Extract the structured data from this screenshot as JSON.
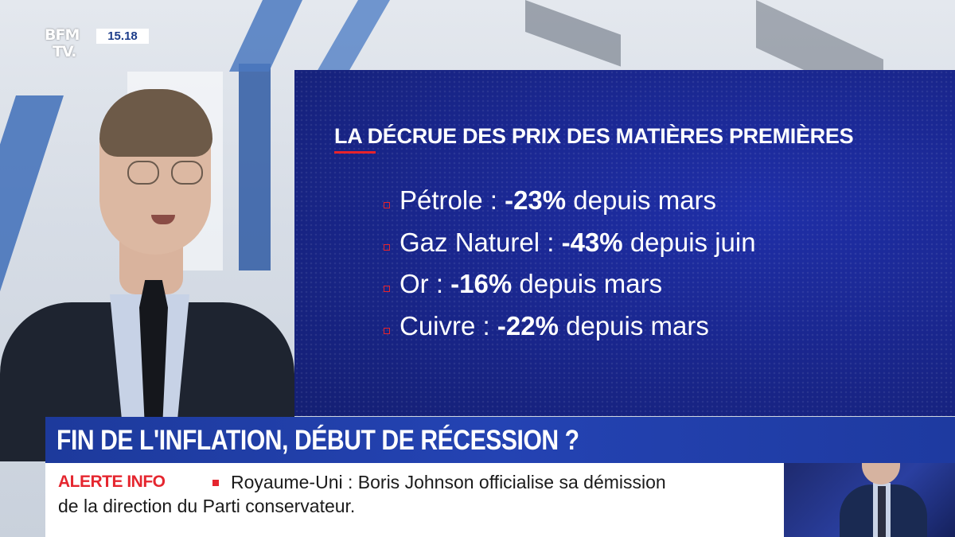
{
  "channel": {
    "logo_line1": "BFM",
    "logo_line2": "TV.",
    "time": "15.18"
  },
  "graphic": {
    "title": "LA DÉCRUE DES PRIX DES MATIÈRES PREMIÈRES",
    "items": [
      {
        "name": "Pétrole :",
        "change": "-23%",
        "period": "depuis mars"
      },
      {
        "name": "Gaz Naturel :",
        "change": "-43%",
        "period": "depuis juin"
      },
      {
        "name": "Or :",
        "change": "-16%",
        "period": "depuis mars"
      },
      {
        "name": "Cuivre :",
        "change": "-22%",
        "period": "depuis mars"
      }
    ]
  },
  "headline": "FIN DE L'INFLATION, DÉBUT DE RÉCESSION ?",
  "ticker": {
    "label": "ALERTE INFO",
    "line1": "Royaume-Uni : Boris Johnson officialise sa démission",
    "line2": "de la direction du Parti conservateur."
  },
  "colors": {
    "panel_blue": "#1a2790",
    "banner_blue": "#2443b3",
    "alert_red": "#e5262f"
  }
}
